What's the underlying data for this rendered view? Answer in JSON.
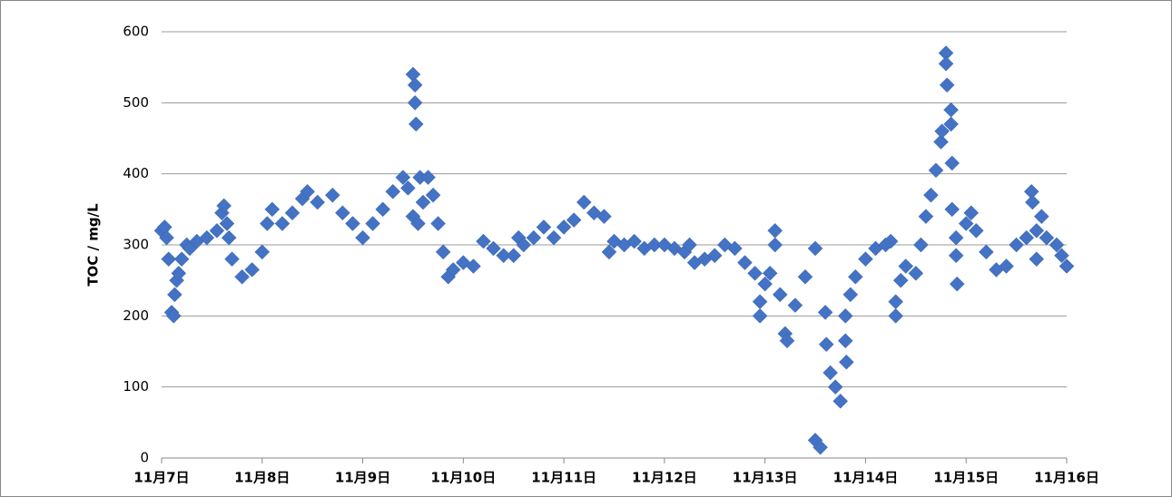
{
  "chart_data": {
    "type": "scatter",
    "y_label": "TOC / mg/L",
    "color": "#4472c4",
    "grid": true,
    "x": [
      7.0,
      7.03,
      7.05,
      7.07,
      7.1,
      7.12,
      7.13,
      7.15,
      7.17,
      7.2,
      7.25,
      7.28,
      7.35,
      7.45,
      7.55,
      7.6,
      7.62,
      7.65,
      7.67,
      7.7,
      7.8,
      7.9,
      8.0,
      8.05,
      8.1,
      8.2,
      8.3,
      8.4,
      8.45,
      8.55,
      8.7,
      8.8,
      8.9,
      9.0,
      9.1,
      9.2,
      9.3,
      9.4,
      9.45,
      9.5,
      9.5,
      9.52,
      9.52,
      9.53,
      9.55,
      9.57,
      9.6,
      9.65,
      9.7,
      9.75,
      9.8,
      9.85,
      9.9,
      10.0,
      10.1,
      10.2,
      10.3,
      10.4,
      10.5,
      10.55,
      10.6,
      10.7,
      10.8,
      10.9,
      11.0,
      11.1,
      11.2,
      11.3,
      11.4,
      11.45,
      11.5,
      11.6,
      11.7,
      11.8,
      11.9,
      12.0,
      12.1,
      12.2,
      12.25,
      12.3,
      12.4,
      12.5,
      12.6,
      12.7,
      12.8,
      12.9,
      12.95,
      12.95,
      13.0,
      13.05,
      13.1,
      13.1,
      13.15,
      13.2,
      13.22,
      13.3,
      13.4,
      13.5,
      13.5,
      13.55,
      13.6,
      13.61,
      13.65,
      13.7,
      13.75,
      13.8,
      13.8,
      13.81,
      13.85,
      13.9,
      14.0,
      14.1,
      14.2,
      14.25,
      14.3,
      14.3,
      14.35,
      14.4,
      14.5,
      14.55,
      14.6,
      14.65,
      14.7,
      14.75,
      14.76,
      14.8,
      14.8,
      14.81,
      14.85,
      14.85,
      14.86,
      14.86,
      14.9,
      14.9,
      14.91,
      15.0,
      15.05,
      15.1,
      15.2,
      15.3,
      15.4,
      15.5,
      15.6,
      15.65,
      15.66,
      15.7,
      15.7,
      15.75,
      15.8,
      15.9,
      15.95,
      16.0
    ],
    "values": [
      320,
      325,
      310,
      280,
      205,
      200,
      230,
      250,
      260,
      280,
      300,
      295,
      305,
      310,
      320,
      345,
      355,
      330,
      310,
      280,
      255,
      265,
      290,
      330,
      350,
      330,
      345,
      365,
      375,
      360,
      370,
      345,
      330,
      310,
      330,
      350,
      375,
      395,
      380,
      340,
      540,
      525,
      500,
      470,
      330,
      395,
      360,
      395,
      370,
      330,
      290,
      255,
      265,
      275,
      270,
      305,
      295,
      285,
      285,
      310,
      300,
      310,
      325,
      310,
      325,
      335,
      360,
      345,
      340,
      290,
      305,
      300,
      305,
      295,
      300,
      300,
      295,
      290,
      300,
      275,
      280,
      285,
      300,
      295,
      275,
      260,
      220,
      200,
      245,
      260,
      320,
      300,
      230,
      175,
      165,
      215,
      255,
      295,
      25,
      15,
      205,
      160,
      120,
      100,
      80,
      200,
      165,
      135,
      230,
      255,
      280,
      295,
      300,
      305,
      200,
      220,
      250,
      270,
      260,
      300,
      340,
      370,
      405,
      445,
      460,
      570,
      555,
      525,
      490,
      470,
      415,
      350,
      310,
      285,
      245,
      330,
      345,
      320,
      290,
      265,
      270,
      300,
      310,
      375,
      360,
      280,
      320,
      340,
      310,
      300,
      285,
      270
    ],
    "xlim": [
      7,
      16
    ],
    "xticks": [
      {
        "value": 7,
        "label": "11月7日"
      },
      {
        "value": 8,
        "label": "11月8日"
      },
      {
        "value": 9,
        "label": "11月9日"
      },
      {
        "value": 10,
        "label": "11月10日"
      },
      {
        "value": 11,
        "label": "11月11日"
      },
      {
        "value": 12,
        "label": "11月12日"
      },
      {
        "value": 13,
        "label": "11月13日"
      },
      {
        "value": 14,
        "label": "11月14日"
      },
      {
        "value": 15,
        "label": "11月15日"
      },
      {
        "value": 16,
        "label": "11月16日"
      }
    ],
    "ylim": [
      0,
      600
    ],
    "yticks": [
      0,
      100,
      200,
      300,
      400,
      500,
      600
    ]
  }
}
